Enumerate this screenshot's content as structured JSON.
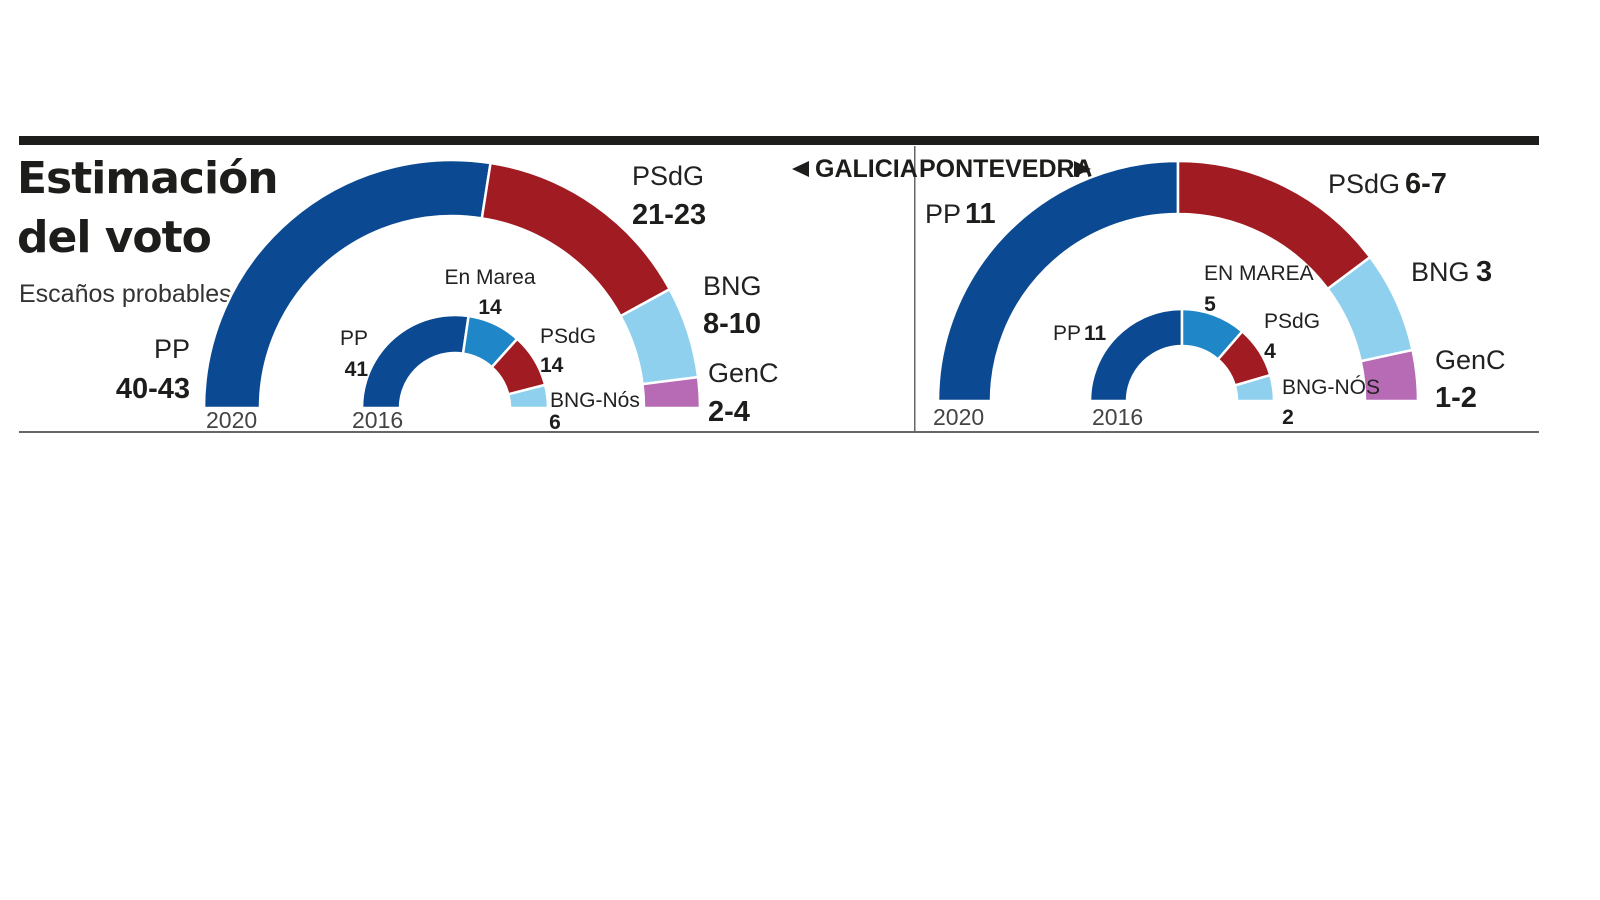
{
  "header": {
    "title_line1": "Estimación",
    "title_line2": "del voto",
    "subtitle": "Escaños probables",
    "nav_left": "GALICIA",
    "nav_right": "PONTEVEDRA"
  },
  "colors": {
    "PP": "#0b4a92",
    "EnMarea": "#1f86c8",
    "PSdG": "#a01b22",
    "BNG": "#8fd0ee",
    "GenC": "#b76bb5",
    "rule": "#1d1d1b"
  },
  "chart_data": [
    {
      "type": "pie",
      "region": "GALICIA",
      "year": "2020",
      "slices": [
        {
          "party": "PP",
          "value": 41.5,
          "label": "40-43"
        },
        {
          "party": "PSdG",
          "value": 22,
          "label": "21-23"
        },
        {
          "party": "BNG",
          "value": 9,
          "label": "8-10"
        },
        {
          "party": "GenC",
          "value": 3,
          "label": "2-4"
        }
      ]
    },
    {
      "type": "pie",
      "region": "GALICIA",
      "year": "2016",
      "slices": [
        {
          "party": "PP",
          "value": 41,
          "label": "41"
        },
        {
          "party": "En Marea",
          "value": 14,
          "label": "14"
        },
        {
          "party": "PSdG",
          "value": 14,
          "label": "14"
        },
        {
          "party": "BNG-Nós",
          "value": 6,
          "label": "6"
        }
      ]
    },
    {
      "type": "pie",
      "region": "PONTEVEDRA",
      "year": "2020",
      "slices": [
        {
          "party": "PP",
          "value": 11,
          "label": "11"
        },
        {
          "party": "PSdG",
          "value": 6.5,
          "label": "6-7"
        },
        {
          "party": "BNG",
          "value": 3,
          "label": "3"
        },
        {
          "party": "GenC",
          "value": 1.5,
          "label": "1-2"
        }
      ]
    },
    {
      "type": "pie",
      "region": "PONTEVEDRA",
      "year": "2016",
      "slices": [
        {
          "party": "PP",
          "value": 11,
          "label": "11"
        },
        {
          "party": "EN MAREA",
          "value": 5,
          "label": "5"
        },
        {
          "party": "PSdG",
          "value": 4,
          "label": "4"
        },
        {
          "party": "BNG-NÓS",
          "value": 2,
          "label": "2"
        }
      ]
    }
  ]
}
